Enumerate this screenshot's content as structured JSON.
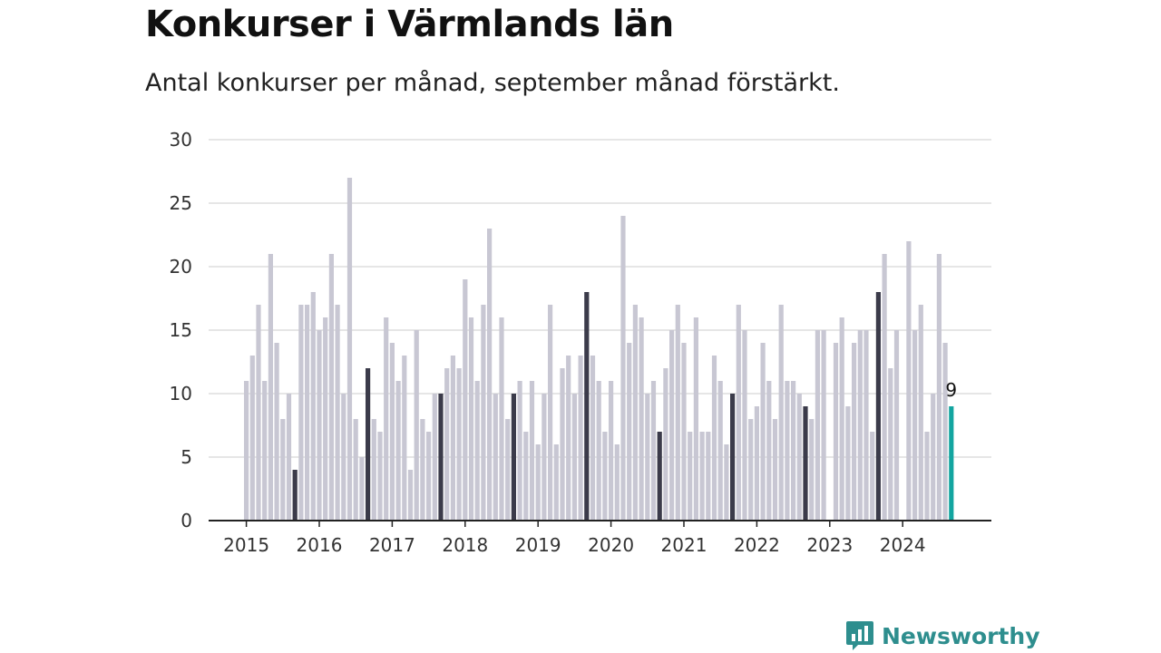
{
  "colors": {
    "bar": "#c8c7d3",
    "highlight": "#3b3b4a",
    "latest": "#13a5a0",
    "grid": "#dddddd",
    "axis": "#222222",
    "brand": "#2e8e8e"
  },
  "header": {
    "title": "Konkurser i Värmlands län",
    "subtitle": "Antal konkurser per månad, september månad förstärkt."
  },
  "brand": {
    "name": "Newsworthy",
    "icon": "newsworthy-logo-icon"
  },
  "chart_data": {
    "type": "bar",
    "title": "Konkurser i Värmlands län",
    "subtitle": "Antal konkurser per månad, september månad förstärkt.",
    "xlabel": "",
    "ylabel": "",
    "ylim": [
      0,
      30
    ],
    "yticks": [
      "0",
      "5",
      "10",
      "15",
      "20",
      "25",
      "30"
    ],
    "xticks": [
      "2015",
      "2016",
      "2017",
      "2018",
      "2019",
      "2020",
      "2021",
      "2022",
      "2023",
      "2024"
    ],
    "grid": true,
    "start": "2015-01",
    "highlight_month": "september",
    "latest_label": "9",
    "series": [
      {
        "values": [
          11,
          13,
          17,
          11,
          21,
          14,
          8,
          10,
          4,
          17,
          17,
          18,
          15,
          16,
          21,
          17,
          10,
          27,
          8,
          5,
          12,
          8,
          7,
          16,
          14,
          11,
          13,
          4,
          15,
          8,
          7,
          10,
          10,
          12,
          13,
          12,
          19,
          16,
          11,
          17,
          23,
          10,
          16,
          8,
          10,
          11,
          7,
          11,
          6,
          10,
          17,
          6,
          12,
          13,
          10,
          13,
          18,
          13,
          11,
          7,
          11,
          6,
          24,
          14,
          17,
          16,
          10,
          11,
          7,
          12,
          15,
          17,
          14,
          7,
          16,
          7,
          7,
          13,
          11,
          6,
          10,
          17,
          15,
          8,
          9,
          14,
          11,
          8,
          17,
          11,
          11,
          10,
          9,
          8,
          15,
          15,
          0,
          14,
          16,
          9,
          14,
          15,
          15,
          7,
          18,
          21,
          12,
          15,
          0,
          22,
          15,
          17,
          7,
          10,
          21,
          14,
          9
        ]
      }
    ]
  }
}
